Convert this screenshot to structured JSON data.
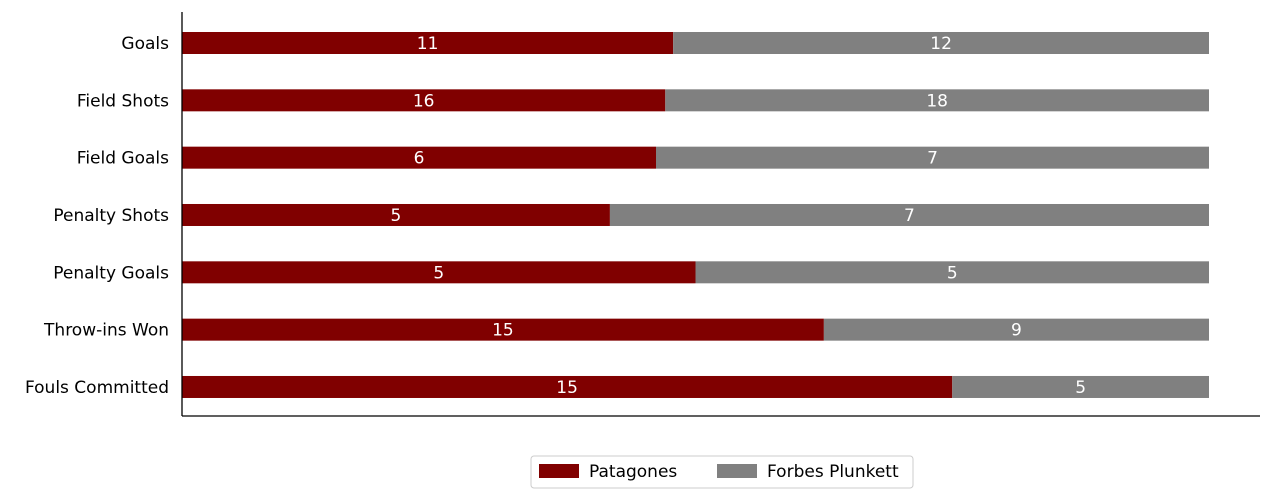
{
  "chart_data": {
    "type": "bar",
    "orientation": "horizontal",
    "stacked": true,
    "normalized": true,
    "categories": [
      "Goals",
      "Field Shots",
      "Field Goals",
      "Penalty Shots",
      "Penalty Goals",
      "Throw-ins Won",
      "Fouls Committed"
    ],
    "series": [
      {
        "name": "Patagones",
        "color": "#800000",
        "values": [
          11,
          16,
          6,
          5,
          5,
          15,
          15
        ]
      },
      {
        "name": "Forbes Plunkett",
        "color": "#808080",
        "values": [
          12,
          18,
          7,
          7,
          5,
          9,
          5
        ]
      }
    ],
    "title": "",
    "xlabel": "",
    "ylabel": "",
    "grid": false,
    "legend_position": "bottom-center",
    "value_label_color": "#ffffff"
  }
}
